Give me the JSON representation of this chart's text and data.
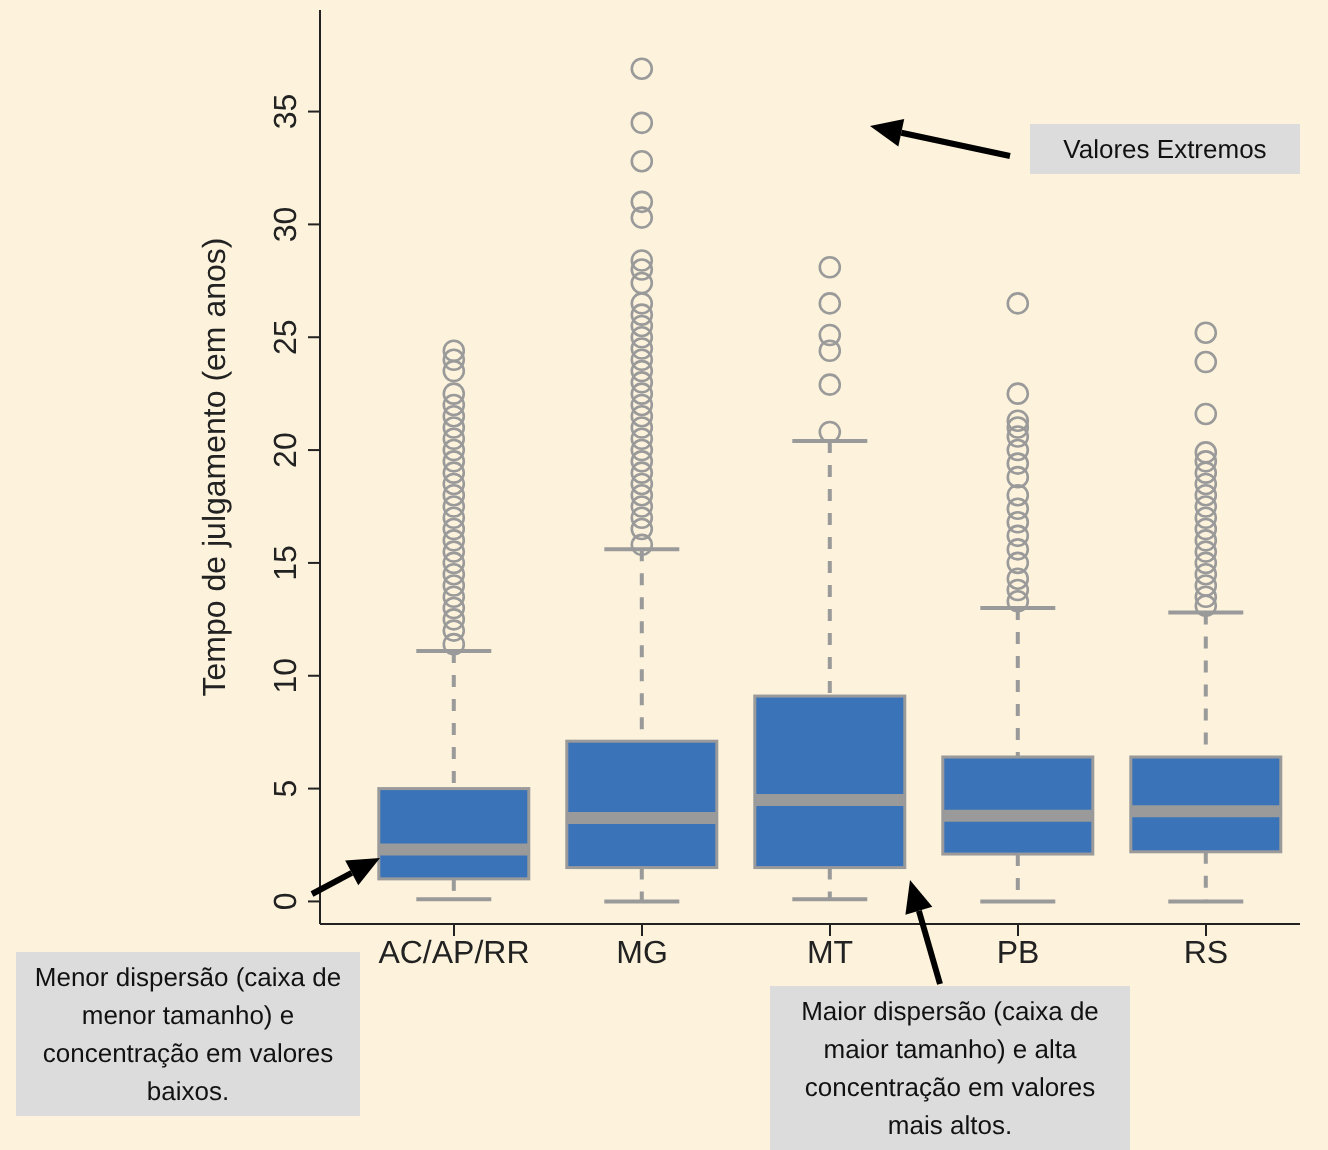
{
  "chart_data": {
    "type": "box",
    "ylabel": "Tempo de julgamento (em anos)",
    "categories": [
      "AC/AP/RR",
      "MG",
      "MT",
      "PB",
      "RS"
    ],
    "boxes": [
      {
        "low": 0.1,
        "q1": 1.0,
        "median": 2.3,
        "q3": 5.0,
        "high": 11.1,
        "outliers": [
          11.4,
          12,
          12.5,
          13,
          13.5,
          14,
          14.5,
          15,
          15.5,
          16,
          16.5,
          17,
          17.5,
          18,
          18.5,
          19,
          19.5,
          20,
          20.5,
          21,
          21.5,
          22,
          22.5,
          23.5,
          24,
          24.4
        ]
      },
      {
        "low": 0,
        "q1": 1.5,
        "median": 3.7,
        "q3": 7.1,
        "high": 15.6,
        "outliers": [
          15.8,
          16.5,
          17,
          17.5,
          18,
          18.5,
          19,
          19.5,
          20,
          20.5,
          21,
          21.5,
          22,
          22.5,
          23,
          23.5,
          24,
          24.5,
          25,
          25.5,
          26,
          26.5,
          27.4,
          28,
          28.4,
          30.3,
          31.0,
          32.8,
          34.5,
          36.9
        ]
      },
      {
        "low": 0.1,
        "q1": 1.5,
        "median": 4.5,
        "q3": 9.1,
        "high": 20.4,
        "outliers": [
          20.8,
          22.9,
          24.4,
          25.1,
          26.5,
          28.1
        ]
      },
      {
        "low": 0,
        "q1": 2.1,
        "median": 3.8,
        "q3": 6.4,
        "high": 13.0,
        "outliers": [
          13.3,
          13.8,
          14.3,
          15,
          15.6,
          16.2,
          16.8,
          17.4,
          18,
          18.8,
          19.4,
          20,
          20.6,
          21,
          21.3,
          22.5,
          26.5
        ]
      },
      {
        "low": 0,
        "q1": 2.2,
        "median": 4.0,
        "q3": 6.4,
        "high": 12.8,
        "outliers": [
          13.1,
          13.5,
          14,
          14.5,
          15,
          15.5,
          16,
          16.5,
          17,
          17.5,
          18,
          18.5,
          19,
          19.5,
          19.9,
          21.6,
          23.9,
          25.2
        ]
      }
    ],
    "color": "#3a73b8",
    "ylim": [
      -1,
      39.5
    ],
    "yticks": [
      0,
      5,
      10,
      15,
      20,
      25,
      30,
      35
    ],
    "annotations": [
      "Valores Extremos",
      "Menor dispersão (caixa de menor tamanho) e concentração em valores baixos.",
      "Maior dispersão (caixa de maior tamanho) e alta concentração em valores mais altos."
    ],
    "grid": false,
    "legend": false
  }
}
